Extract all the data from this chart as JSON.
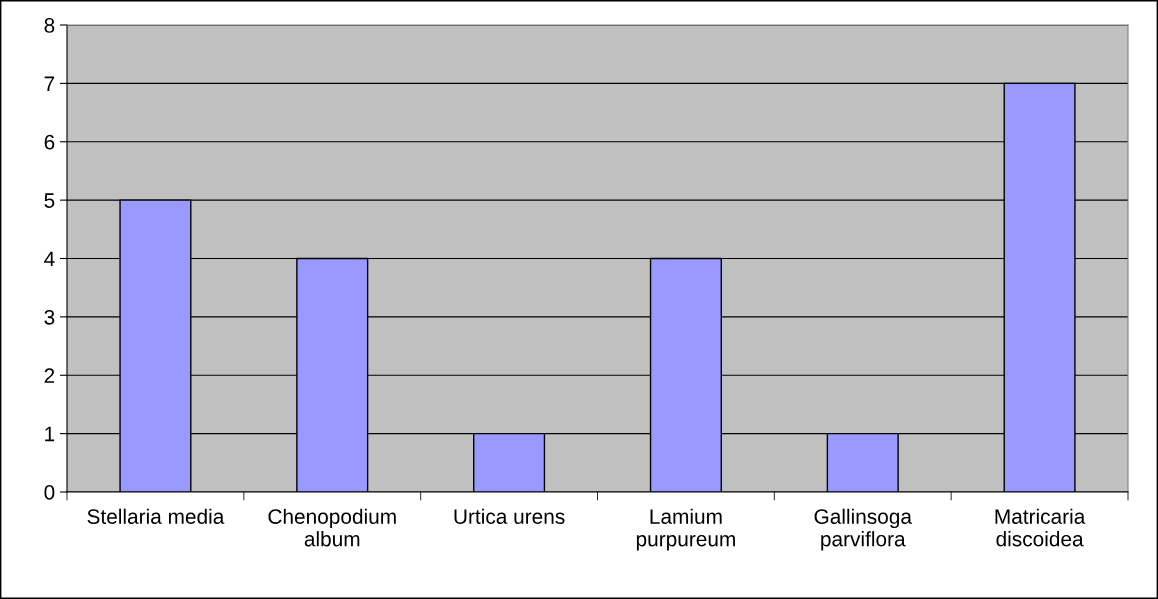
{
  "chart_data": {
    "type": "bar",
    "categories": [
      "Stellaria media",
      "Chenopodium\nalbum",
      "Urtica urens",
      "Lamium\npurpureum",
      "Gallinsoga\nparviflora",
      "Matricaria\ndiscoidea"
    ],
    "values": [
      5,
      4,
      1,
      4,
      1,
      7
    ],
    "color": "#9999ff",
    "ylim": [
      0,
      8
    ],
    "yticks": [
      0,
      1,
      2,
      3,
      4,
      5,
      6,
      7,
      8
    ],
    "grid": "y"
  }
}
